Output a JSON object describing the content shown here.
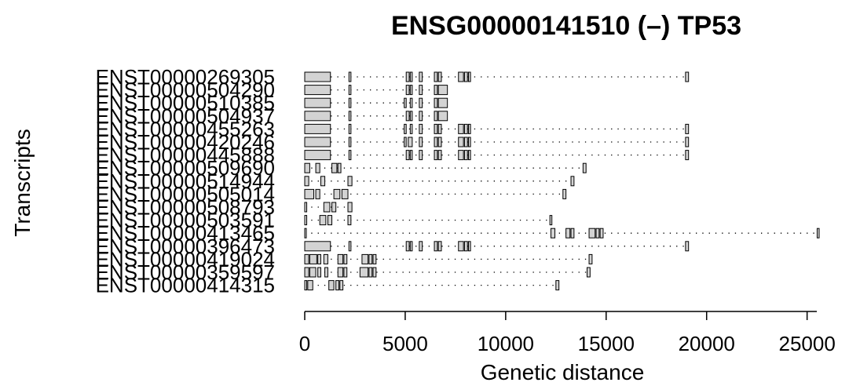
{
  "chart_data": {
    "type": "gene-structure",
    "title": "ENSG00000141510 (–) TP53",
    "xlabel": "Genetic distance",
    "ylabel": "Transcripts",
    "xlim": [
      0,
      25600
    ],
    "x_ticks": [
      0,
      5000,
      10000,
      15000,
      20000,
      25000
    ],
    "fill_color": "#d3d3d3",
    "transcripts": [
      {
        "name": "ENST00000269305",
        "exons": [
          [
            0,
            1280
          ],
          [
            2200,
            2300
          ],
          [
            5050,
            5200
          ],
          [
            5250,
            5350
          ],
          [
            5700,
            5850
          ],
          [
            6450,
            6600
          ],
          [
            6650,
            6800
          ],
          [
            7650,
            7900
          ],
          [
            7950,
            8100
          ],
          [
            8150,
            8250
          ],
          [
            18950,
            19100
          ]
        ]
      },
      {
        "name": "ENST00000504290",
        "exons": [
          [
            0,
            1280
          ],
          [
            2200,
            2300
          ],
          [
            5050,
            5200
          ],
          [
            5250,
            5350
          ],
          [
            5700,
            5850
          ],
          [
            6450,
            6600
          ],
          [
            6650,
            7100
          ]
        ]
      },
      {
        "name": "ENST00000510385",
        "exons": [
          [
            0,
            1280
          ],
          [
            2200,
            2300
          ],
          [
            4950,
            5050
          ],
          [
            5250,
            5350
          ],
          [
            5700,
            5850
          ],
          [
            6450,
            6600
          ],
          [
            6650,
            7100
          ]
        ]
      },
      {
        "name": "ENST00000504937",
        "exons": [
          [
            0,
            1280
          ],
          [
            2200,
            2300
          ],
          [
            5050,
            5200
          ],
          [
            5250,
            5350
          ],
          [
            5700,
            5850
          ],
          [
            6450,
            6600
          ],
          [
            6650,
            7100
          ]
        ]
      },
      {
        "name": "ENST00000455263",
        "exons": [
          [
            0,
            1280
          ],
          [
            2200,
            2300
          ],
          [
            4950,
            5050
          ],
          [
            5250,
            5350
          ],
          [
            5700,
            5850
          ],
          [
            6450,
            6600
          ],
          [
            6650,
            6800
          ],
          [
            7650,
            7900
          ],
          [
            7950,
            8100
          ],
          [
            8150,
            8250
          ],
          [
            18950,
            19100
          ]
        ]
      },
      {
        "name": "ENST00000420246",
        "exons": [
          [
            0,
            1280
          ],
          [
            2200,
            2300
          ],
          [
            4950,
            5050
          ],
          [
            5150,
            5350
          ],
          [
            5700,
            5850
          ],
          [
            6450,
            6600
          ],
          [
            6650,
            6800
          ],
          [
            7650,
            7900
          ],
          [
            7950,
            8100
          ],
          [
            8150,
            8250
          ],
          [
            18950,
            19100
          ]
        ]
      },
      {
        "name": "ENST00000445888",
        "exons": [
          [
            0,
            1280
          ],
          [
            2200,
            2300
          ],
          [
            5050,
            5200
          ],
          [
            5250,
            5350
          ],
          [
            5700,
            5850
          ],
          [
            6450,
            6600
          ],
          [
            6650,
            6800
          ],
          [
            7650,
            7900
          ],
          [
            7950,
            8100
          ],
          [
            8150,
            8250
          ],
          [
            18950,
            19100
          ]
        ]
      },
      {
        "name": "ENST00000509690",
        "exons": [
          [
            0,
            250
          ],
          [
            550,
            750
          ],
          [
            1350,
            1600
          ],
          [
            1650,
            1800
          ],
          [
            13850,
            14000
          ]
        ]
      },
      {
        "name": "ENST00000514944",
        "exons": [
          [
            0,
            200
          ],
          [
            800,
            1000
          ],
          [
            2150,
            2350
          ],
          [
            13250,
            13400
          ]
        ]
      },
      {
        "name": "ENST00000505014",
        "exons": [
          [
            0,
            450
          ],
          [
            550,
            750
          ],
          [
            1450,
            1750
          ],
          [
            1850,
            2150
          ],
          [
            12850,
            13000
          ]
        ]
      },
      {
        "name": "ENST00000508793",
        "exons": [
          [
            0,
            100
          ],
          [
            950,
            1250
          ],
          [
            1350,
            1550
          ],
          [
            2150,
            2350
          ]
        ]
      },
      {
        "name": "ENST00000503591",
        "exons": [
          [
            0,
            100
          ],
          [
            750,
            1050
          ],
          [
            1150,
            1350
          ],
          [
            2150,
            2300
          ],
          [
            12200,
            12300
          ]
        ]
      },
      {
        "name": "ENST00000413465",
        "exons": [
          [
            0,
            50
          ],
          [
            12250,
            12450
          ],
          [
            13000,
            13200
          ],
          [
            13250,
            13400
          ],
          [
            14150,
            14450
          ],
          [
            14500,
            14650
          ],
          [
            14700,
            14850
          ],
          [
            25500,
            25600
          ]
        ]
      },
      {
        "name": "ENST00000396473",
        "exons": [
          [
            0,
            1280
          ],
          [
            2200,
            2300
          ],
          [
            5050,
            5200
          ],
          [
            5250,
            5350
          ],
          [
            5700,
            5850
          ],
          [
            6450,
            6600
          ],
          [
            6650,
            6800
          ],
          [
            7650,
            7900
          ],
          [
            7950,
            8100
          ],
          [
            8150,
            8250
          ],
          [
            18950,
            19100
          ]
        ]
      },
      {
        "name": "ENST00000419024",
        "exons": [
          [
            0,
            200
          ],
          [
            250,
            600
          ],
          [
            650,
            800
          ],
          [
            950,
            1150
          ],
          [
            1650,
            1900
          ],
          [
            1950,
            2100
          ],
          [
            2850,
            3150
          ],
          [
            3200,
            3350
          ],
          [
            3400,
            3550
          ],
          [
            14150,
            14300
          ]
        ]
      },
      {
        "name": "ENST00000359597",
        "exons": [
          [
            0,
            200
          ],
          [
            250,
            550
          ],
          [
            650,
            800
          ],
          [
            1000,
            1150
          ],
          [
            1650,
            1900
          ],
          [
            1950,
            2100
          ],
          [
            2750,
            3150
          ],
          [
            3200,
            3350
          ],
          [
            3400,
            3550
          ],
          [
            14050,
            14200
          ]
        ]
      },
      {
        "name": "ENST00000414315",
        "exons": [
          [
            0,
            100
          ],
          [
            150,
            400
          ],
          [
            1200,
            1450
          ],
          [
            1550,
            1700
          ],
          [
            1750,
            1900
          ],
          [
            12500,
            12650
          ]
        ]
      }
    ]
  }
}
